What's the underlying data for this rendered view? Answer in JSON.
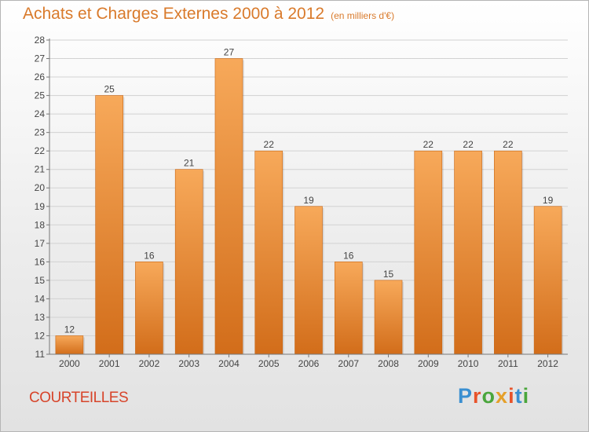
{
  "title": "Achats et Charges Externes 2000 à 2012",
  "subtitle": "(en milliers d'€)",
  "commune": "COURTEILLES",
  "logo": {
    "text": "Proxiti",
    "letter_colors": [
      "#3a8fd1",
      "#e8532a",
      "#4aa63c",
      "#e5a02a",
      "#e8532a",
      "#3a8fd1",
      "#4aa63c"
    ]
  },
  "colors": {
    "bar_light": "#f7a95a",
    "bar_dark": "#d26d1a",
    "title": "#d97a2b",
    "commune": "#d7442a"
  },
  "chart_data": {
    "type": "bar",
    "title": "Achats et Charges Externes 2000 à 2012",
    "subtitle": "(en milliers d'€)",
    "categories": [
      "2000",
      "2001",
      "2002",
      "2003",
      "2004",
      "2005",
      "2006",
      "2007",
      "2008",
      "2009",
      "2010",
      "2011",
      "2012"
    ],
    "values": [
      12,
      25,
      16,
      21,
      27,
      22,
      19,
      16,
      15,
      22,
      22,
      22,
      19
    ],
    "ylim": [
      11,
      28
    ],
    "yticks": [
      11,
      12,
      13,
      14,
      15,
      16,
      17,
      18,
      19,
      20,
      21,
      22,
      23,
      24,
      25,
      26,
      27,
      28
    ],
    "grid": true,
    "data_labels": true
  }
}
